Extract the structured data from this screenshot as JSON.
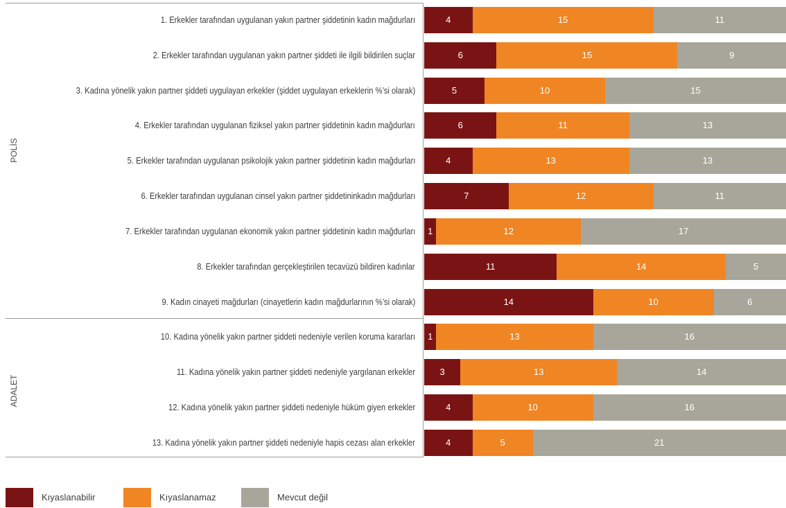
{
  "chart_data": {
    "type": "bar",
    "orientation": "horizontal",
    "stacked": true,
    "xlim": [
      0,
      30
    ],
    "grid": false,
    "legend_position": "bottom-left",
    "groups": [
      {
        "label": "POLİS",
        "rows": [
          0,
          1,
          2,
          3,
          4,
          5,
          6,
          7,
          8
        ]
      },
      {
        "label": "ADALET",
        "rows": [
          9,
          10,
          11,
          12
        ]
      }
    ],
    "categories": [
      "1. Erkekler tarafından uygulanan yakın partner şiddetinin kadın mağdurları",
      "2. Erkekler tarafından uygulanan yakın partner şiddeti ile ilgili bildirilen suçlar",
      "3. Kadına yönelik yakın partner şiddeti uygulayan erkekler (şiddet uygulayan erkeklerin %’si olarak)",
      "4. Erkekler tarafından uygulanan fiziksel yakın partner şiddetinin kadın mağdurları",
      "5. Erkekler tarafından uygulanan psikolojik yakın partner şiddetinin kadın mağdurları",
      "6. Erkekler tarafından uygulanan cinsel yakın partner şiddetininkadın mağdurları",
      "7. Erkekler tarafından uygulanan ekonomik yakın partner şiddetinin kadın mağdurları",
      "8. Erkekler tarafından gerçekleştirilen tecavüzü bildiren kadınlar",
      "9. Kadın cinayeti mağdurları (cinayetlerin kadın mağdurlarının %’si olarak)",
      "10. Kadına yönelik yakın partner şiddeti nedeniyle verilen koruma kararları",
      "11. Kadına yönelik yakın partner şiddeti nedeniyle yargılanan erkekler",
      "12. Kadına yönelik yakın partner şiddeti nedeniyle hüküm giyen erkekler",
      "13. Kadına yönelik yakın partner şiddeti nedeniyle hapis cezası alan erkekler"
    ],
    "series": [
      {
        "name": "Kıyaslanabilir",
        "color": "#7a1414",
        "values": [
          4,
          6,
          5,
          6,
          4,
          7,
          1,
          11,
          14,
          1,
          3,
          4,
          4
        ]
      },
      {
        "name": "Kıyaslanamaz",
        "color": "#f08524",
        "values": [
          15,
          15,
          10,
          11,
          13,
          12,
          12,
          14,
          10,
          13,
          13,
          10,
          5
        ]
      },
      {
        "name": "Mevcut değil",
        "color": "#a8a69a",
        "values": [
          11,
          9,
          15,
          13,
          13,
          11,
          17,
          5,
          6,
          16,
          14,
          16,
          21
        ]
      }
    ]
  },
  "colors": {
    "kiyaslanabilir": "#7a1414",
    "kiyaslanamaz": "#f08524",
    "mevcut_degil": "#a8a69a",
    "frame": "#9a9a9a"
  }
}
